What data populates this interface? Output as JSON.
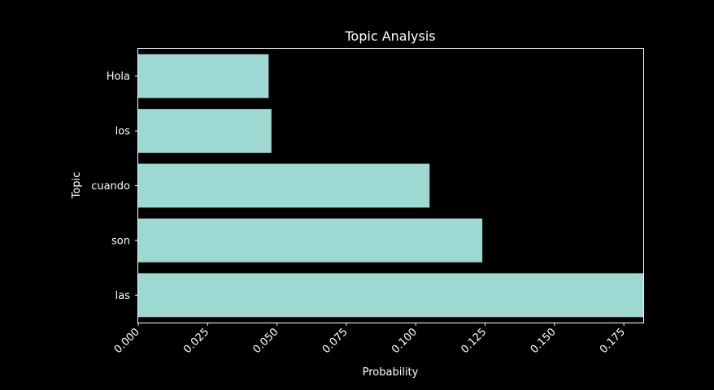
{
  "chart_data": {
    "type": "bar",
    "orientation": "horizontal",
    "title": "Topic Analysis",
    "xlabel": "Probability",
    "ylabel": "Topic",
    "categories": [
      "Hola",
      "los",
      "cuando",
      "son",
      "las"
    ],
    "values": [
      0.047,
      0.048,
      0.105,
      0.124,
      0.182
    ],
    "xlim": [
      0,
      0.182
    ],
    "xticks": [
      0.0,
      0.025,
      0.05,
      0.075,
      0.1,
      0.125,
      0.15,
      0.175
    ],
    "xtick_labels": [
      "0.000",
      "0.025",
      "0.050",
      "0.075",
      "0.100",
      "0.125",
      "0.150",
      "0.175"
    ],
    "grid": false,
    "bar_color": "#9dd9d2",
    "background_color": "#000000",
    "foreground_color": "#ffffff"
  }
}
